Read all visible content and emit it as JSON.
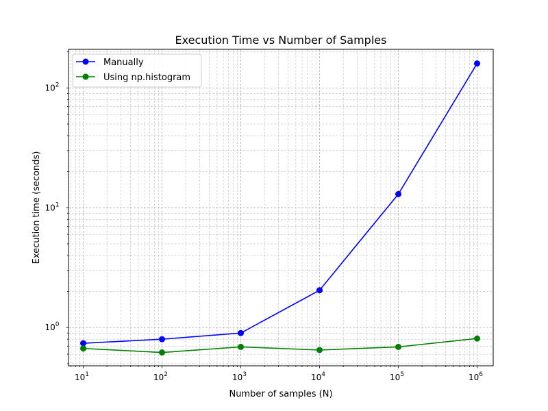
{
  "chart_data": {
    "type": "line",
    "title": "Execution Time vs Number of Samples",
    "xlabel": "Number of samples (N)",
    "ylabel": "Execution time (seconds)",
    "x_scale": "log",
    "y_scale": "log",
    "x": [
      10,
      100,
      1000,
      10000,
      100000,
      1000000
    ],
    "xlim": [
      6.5,
      1600000
    ],
    "ylim": [
      0.48,
      210
    ],
    "x_ticks": [
      {
        "value": 10,
        "base": "10",
        "exp": "1"
      },
      {
        "value": 100,
        "base": "10",
        "exp": "2"
      },
      {
        "value": 1000,
        "base": "10",
        "exp": "3"
      },
      {
        "value": 10000,
        "base": "10",
        "exp": "4"
      },
      {
        "value": 100000,
        "base": "10",
        "exp": "5"
      },
      {
        "value": 1000000,
        "base": "10",
        "exp": "6"
      }
    ],
    "y_ticks": [
      {
        "value": 1,
        "base": "10",
        "exp": "0"
      },
      {
        "value": 10,
        "base": "10",
        "exp": "1"
      },
      {
        "value": 100,
        "base": "10",
        "exp": "2"
      }
    ],
    "grid": true,
    "legend_position": "top-left",
    "series": [
      {
        "name": "Manually",
        "color": "#0000ff",
        "values": [
          0.74,
          0.8,
          0.9,
          2.05,
          13.0,
          160.0
        ]
      },
      {
        "name": "Using np.histogram",
        "color": "#008000",
        "values": [
          0.67,
          0.62,
          0.69,
          0.65,
          0.69,
          0.81
        ]
      }
    ]
  }
}
